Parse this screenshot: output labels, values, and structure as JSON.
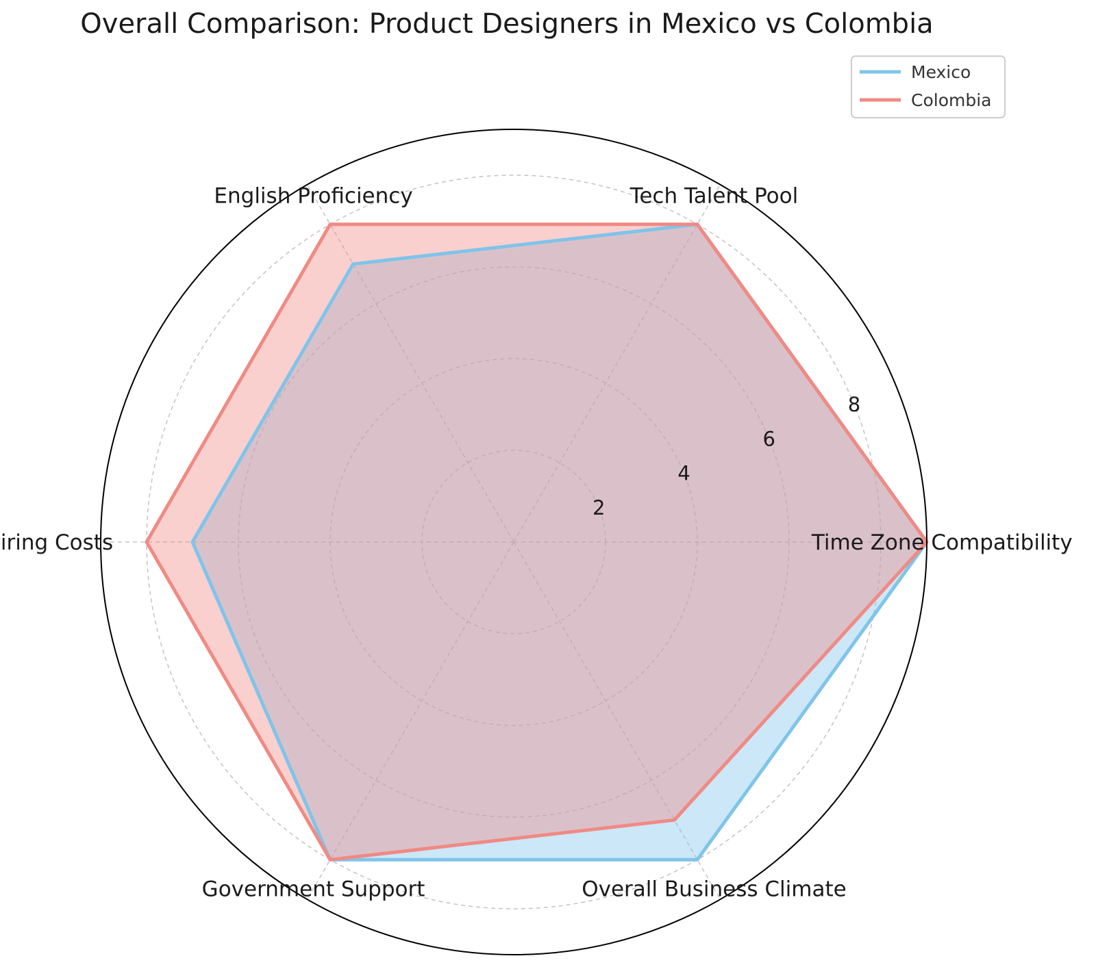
{
  "chart_data": {
    "type": "radar",
    "title": "Overall Comparison: Product Designers in Mexico vs Colombia",
    "categories": [
      "Time Zone Compatibility",
      "Tech Talent Pool",
      "English Proficiency",
      "Hiring Costs",
      "Government Support",
      "Overall Business Climate"
    ],
    "series": [
      {
        "name": "Mexico",
        "values": [
          9,
          8,
          7,
          7,
          8,
          8
        ],
        "color": "#7fc4ea"
      },
      {
        "name": "Colombia",
        "values": [
          9,
          8,
          8,
          8,
          8,
          7
        ],
        "color": "#f08a84"
      }
    ],
    "radial_ticks": [
      "2",
      "4",
      "6",
      "8"
    ],
    "rlim": [
      0,
      9
    ],
    "grid": true,
    "legend_position": "top-right"
  }
}
